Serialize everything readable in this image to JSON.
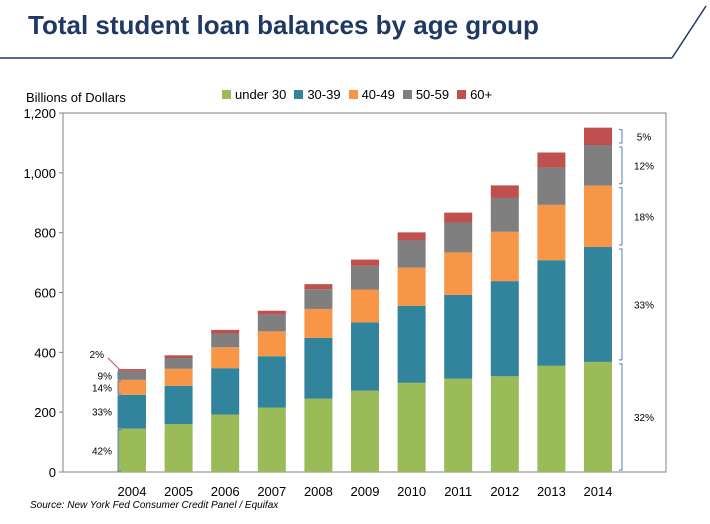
{
  "title": "Total student loan balances by age group",
  "source": "Source: New York Fed Consumer Credit Panel / Equifax",
  "colors": {
    "under 30": "#9bbb59",
    "30-39": "#31849b",
    "40-49": "#f79646",
    "50-59": "#7f7f7f",
    "60+": "#c0504d",
    "title": "#1f3864",
    "bracket": "#4f81bd"
  },
  "chart_data": {
    "type": "bar",
    "stacked": true,
    "ylabel": "Billions of Dollars",
    "ylim": [
      0,
      1200
    ],
    "yticks": [
      "0",
      "200",
      "400",
      "600",
      "800",
      "1,000",
      "1,200"
    ],
    "yticks_values": [
      0,
      200,
      400,
      600,
      800,
      1000,
      1200
    ],
    "categories": [
      "2004",
      "2005",
      "2006",
      "2007",
      "2008",
      "2009",
      "2010",
      "2011",
      "2012",
      "2013",
      "2014"
    ],
    "legend_position": "top",
    "series": [
      {
        "name": "under 30",
        "values": [
          145,
          160,
          192,
          215,
          245,
          272,
          298,
          312,
          320,
          355,
          368
        ]
      },
      {
        "name": "30-39",
        "values": [
          113,
          128,
          155,
          172,
          203,
          228,
          257,
          280,
          318,
          353,
          384
        ]
      },
      {
        "name": "40-49",
        "values": [
          50,
          57,
          70,
          83,
          97,
          110,
          128,
          142,
          165,
          185,
          205
        ]
      },
      {
        "name": "50-59",
        "values": [
          30,
          36,
          46,
          56,
          66,
          79,
          91,
          100,
          113,
          125,
          136
        ]
      },
      {
        "name": "60+",
        "values": [
          6,
          9,
          12,
          13,
          17,
          21,
          27,
          33,
          42,
          50,
          58
        ]
      }
    ],
    "annotations_2004": [
      {
        "label": "42%",
        "series": "under 30"
      },
      {
        "label": "33%",
        "series": "30-39"
      },
      {
        "label": "14%",
        "series": "40-49"
      },
      {
        "label": "9%",
        "series": "50-59"
      },
      {
        "label": "2%",
        "series": "60+"
      }
    ],
    "annotations_2014": [
      {
        "label": "32%",
        "series": "under 30"
      },
      {
        "label": "33%",
        "series": "30-39"
      },
      {
        "label": "18%",
        "series": "40-49"
      },
      {
        "label": "12%",
        "series": "50-59"
      },
      {
        "label": "5%",
        "series": "60+"
      }
    ]
  }
}
